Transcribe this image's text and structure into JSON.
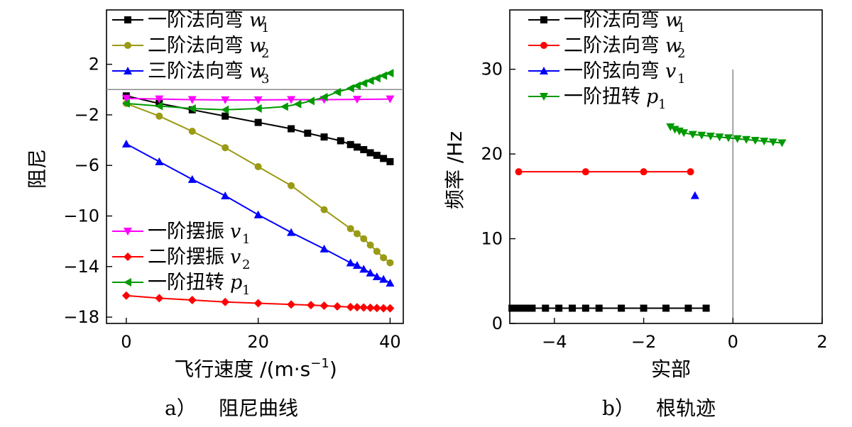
{
  "chart_data": [
    {
      "type": "line",
      "xlabel": "飞行速度 /(m·s",
      "xlabel_sup": "−1",
      "xlabel_close": ")",
      "ylabel": "阻尼",
      "caption_letter": "a）",
      "caption": "阻尼曲线",
      "xlim": [
        -3,
        42
      ],
      "ylim": [
        -18.5,
        6.3
      ],
      "xticks": [
        0,
        20,
        40
      ],
      "xtick_labels": [
        "0",
        "20",
        "40"
      ],
      "yticks": [
        2,
        -2,
        -6,
        -10,
        -14,
        -18
      ],
      "ytick_labels": [
        "2",
        "−2",
        "−6",
        "−10",
        "−14",
        "−18"
      ],
      "hline": 0,
      "grid": false,
      "series": [
        {
          "name": "一阶法向弯",
          "symbol": "w",
          "sub": "1",
          "color": "#000000",
          "marker": "square",
          "x": [
            0,
            5,
            10,
            15,
            20,
            25,
            27.5,
            30,
            32.5,
            34,
            35,
            36,
            37,
            38,
            39,
            40
          ],
          "y": [
            -0.5,
            -1.1,
            -1.6,
            -2.1,
            -2.6,
            -3.1,
            -3.45,
            -3.75,
            -4.05,
            -4.35,
            -4.55,
            -4.75,
            -5.0,
            -5.2,
            -5.45,
            -5.7
          ]
        },
        {
          "name": "二阶法向弯",
          "symbol": "w",
          "sub": "2",
          "color": "#9a9a14",
          "marker": "circle",
          "x": [
            0,
            5,
            10,
            15,
            20,
            25,
            30,
            34,
            35,
            36,
            37,
            38,
            39,
            40
          ],
          "y": [
            -1.1,
            -2.1,
            -3.3,
            -4.6,
            -6.1,
            -7.6,
            -9.5,
            -11.0,
            -11.4,
            -11.8,
            -12.3,
            -12.8,
            -13.3,
            -13.7
          ]
        },
        {
          "name": "三阶法向弯",
          "symbol": "w",
          "sub": "3",
          "color": "#0000ff",
          "marker": "triangle-up",
          "x": [
            0,
            5,
            10,
            15,
            20,
            25,
            30,
            34,
            35,
            36,
            37,
            38,
            39,
            40
          ],
          "y": [
            -4.3,
            -5.7,
            -7.1,
            -8.4,
            -9.9,
            -11.3,
            -12.6,
            -13.7,
            -13.9,
            -14.2,
            -14.5,
            -14.8,
            -15.0,
            -15.3
          ]
        },
        {
          "name": "一阶摆振",
          "symbol": "v",
          "sub": "1",
          "color": "#ff00ff",
          "marker": "triangle-down",
          "x": [
            0,
            5,
            10,
            15,
            20,
            25,
            30,
            35,
            40
          ],
          "y": [
            -0.7,
            -0.75,
            -0.8,
            -0.82,
            -0.82,
            -0.8,
            -0.8,
            -0.78,
            -0.75
          ]
        },
        {
          "name": "二阶摆振",
          "symbol": "v",
          "sub": "2",
          "color": "#ff0000",
          "marker": "diamond",
          "x": [
            0,
            5,
            10,
            15,
            20,
            25,
            28,
            30,
            32,
            34,
            35,
            36,
            37,
            38,
            39,
            40
          ],
          "y": [
            -16.3,
            -16.5,
            -16.65,
            -16.8,
            -16.9,
            -17.0,
            -17.05,
            -17.1,
            -17.15,
            -17.2,
            -17.22,
            -17.24,
            -17.26,
            -17.28,
            -17.3,
            -17.3
          ]
        },
        {
          "name": "一阶扭转",
          "symbol": "p",
          "sub": "1",
          "color": "#009900",
          "marker": "triangle-left",
          "x": [
            0,
            5,
            10,
            15,
            20,
            24,
            26,
            28,
            30,
            32,
            34,
            35,
            36,
            37,
            38,
            39,
            40
          ],
          "y": [
            -1.1,
            -1.3,
            -1.5,
            -1.6,
            -1.5,
            -1.35,
            -1.15,
            -0.9,
            -0.6,
            -0.2,
            0.1,
            0.3,
            0.5,
            0.7,
            0.9,
            1.1,
            1.3
          ]
        }
      ],
      "legend_upper": [
        0,
        1,
        2
      ],
      "legend_lower": [
        3,
        4,
        5
      ]
    },
    {
      "type": "scatter",
      "xlabel": "实部",
      "ylabel": "频率 /Hz",
      "caption_letter": "b）",
      "caption": "根轨迹",
      "xlim": [
        -5,
        2
      ],
      "ylim": [
        0,
        37
      ],
      "xticks": [
        -4,
        -2,
        0,
        2
      ],
      "xtick_labels": [
        "−4",
        "−2",
        "0",
        "2"
      ],
      "yticks": [
        0,
        10,
        20,
        30
      ],
      "ytick_labels": [
        "0",
        "10",
        "20",
        "30"
      ],
      "vline": 0,
      "grid": false,
      "series": [
        {
          "name": "一阶法向弯",
          "symbol": "w",
          "sub": "1",
          "color": "#000000",
          "marker": "square",
          "x": [
            -4.95,
            -4.8,
            -4.7,
            -4.6,
            -4.5,
            -4.2,
            -3.9,
            -3.6,
            -3.3,
            -3.0,
            -2.5,
            -2.0,
            -1.5,
            -1.0,
            -0.6
          ],
          "y": [
            1.8,
            1.8,
            1.8,
            1.8,
            1.8,
            1.8,
            1.8,
            1.8,
            1.8,
            1.8,
            1.8,
            1.8,
            1.8,
            1.8,
            1.8
          ]
        },
        {
          "name": "二阶法向弯",
          "symbol": "w",
          "sub": "2",
          "color": "#ff0000",
          "marker": "circle",
          "x": [
            -4.8,
            -3.3,
            -2.0,
            -0.95
          ],
          "y": [
            17.9,
            17.9,
            17.9,
            17.9
          ]
        },
        {
          "name": "一阶弦向弯",
          "symbol": "v",
          "sub": "1",
          "color": "#0000ff",
          "marker": "triangle-up",
          "x": [
            -0.85
          ],
          "y": [
            15.1
          ]
        },
        {
          "name": "一阶扭转",
          "symbol": "p",
          "sub": "1",
          "color": "#009900",
          "marker": "triangle-down",
          "x": [
            -1.4,
            -1.3,
            -1.2,
            -1.1,
            -0.9,
            -0.7,
            -0.5,
            -0.3,
            -0.1,
            0.1,
            0.3,
            0.5,
            0.7,
            0.9,
            1.1
          ],
          "y": [
            23.2,
            22.9,
            22.7,
            22.5,
            22.3,
            22.2,
            22.1,
            22.0,
            21.9,
            21.8,
            21.7,
            21.6,
            21.5,
            21.4,
            21.3
          ]
        }
      ],
      "legend_upper": [
        0,
        1,
        2,
        3
      ],
      "legend_lower": []
    }
  ]
}
